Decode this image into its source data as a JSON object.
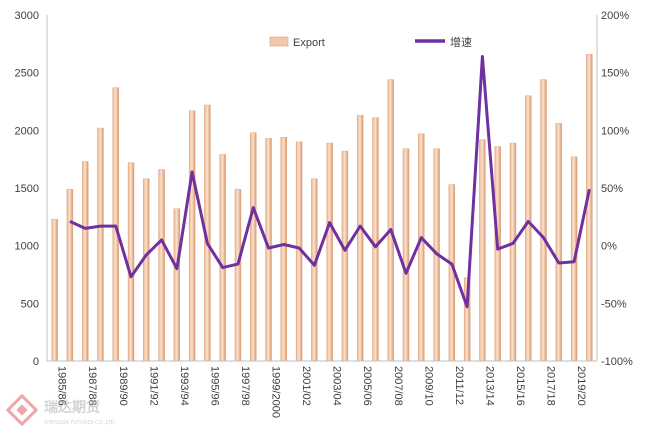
{
  "chart_data": {
    "type": "bar+line",
    "categories": [
      "1985/86",
      "1986/87",
      "1987/88",
      "1988/89",
      "1989/90",
      "1990/91",
      "1991/92",
      "1992/93",
      "1993/94",
      "1994/95",
      "1995/96",
      "1996/97",
      "1997/98",
      "1998/99",
      "1999/2000",
      "2000/01",
      "2001/02",
      "2002/03",
      "2003/04",
      "2004/05",
      "2005/06",
      "2006/07",
      "2007/08",
      "2008/09",
      "2009/10",
      "2010/11",
      "2011/12",
      "2012/13",
      "2013/14",
      "2014/15",
      "2015/16",
      "2016/17",
      "2017/18",
      "2018/19",
      "2019/20",
      "2020/21"
    ],
    "shown_tick_labels": [
      "1985/86",
      "1987/88",
      "1989/90",
      "1991/92",
      "1993/94",
      "1995/96",
      "1997/98",
      "1999/2000",
      "2001/02",
      "2003/04",
      "2005/06",
      "2007/08",
      "2009/10",
      "2011/12",
      "2013/14",
      "2015/16",
      "2017/18",
      "2019/20"
    ],
    "series": [
      {
        "name": "Export",
        "type": "bar",
        "axis": "left",
        "color": "#f2c8a8",
        "values": [
          1230,
          1490,
          1730,
          2020,
          2370,
          1720,
          1580,
          1660,
          1320,
          2170,
          2220,
          1790,
          1490,
          1980,
          1930,
          1940,
          1900,
          1580,
          1890,
          1820,
          2130,
          2110,
          2440,
          1840,
          1970,
          1840,
          1530,
          720,
          1920,
          1860,
          1890,
          2300,
          2440,
          2060,
          1770,
          2660
        ]
      },
      {
        "name": "增速",
        "type": "line",
        "axis": "right",
        "color": "#7030a0",
        "values": [
          null,
          21,
          15,
          17,
          17,
          -27,
          -8,
          5,
          -20,
          64,
          2,
          -19,
          -16,
          33,
          -2,
          1,
          -2,
          -17,
          20,
          -4,
          17,
          -1,
          14,
          -24,
          7,
          -7,
          -16,
          -53,
          164,
          -3,
          2,
          21,
          7,
          -15,
          -14,
          49
        ]
      }
    ],
    "left_axis": {
      "min": 0,
      "max": 3000,
      "step": 500,
      "ticks": [
        "0",
        "500",
        "1000",
        "1500",
        "2000",
        "2500",
        "3000"
      ]
    },
    "right_axis": {
      "min": -100,
      "max": 200,
      "step": 50,
      "ticks": [
        "-100%",
        "-50%",
        "0%",
        "50%",
        "100%",
        "150%",
        "200%"
      ]
    },
    "grid": false,
    "legend_position": "top"
  },
  "legend": {
    "bar_label": "Export",
    "line_label": "增速"
  },
  "watermark": {
    "text": "瑞达期货",
    "subtext": "SHENGDA FUTURES CO.,LTD."
  }
}
